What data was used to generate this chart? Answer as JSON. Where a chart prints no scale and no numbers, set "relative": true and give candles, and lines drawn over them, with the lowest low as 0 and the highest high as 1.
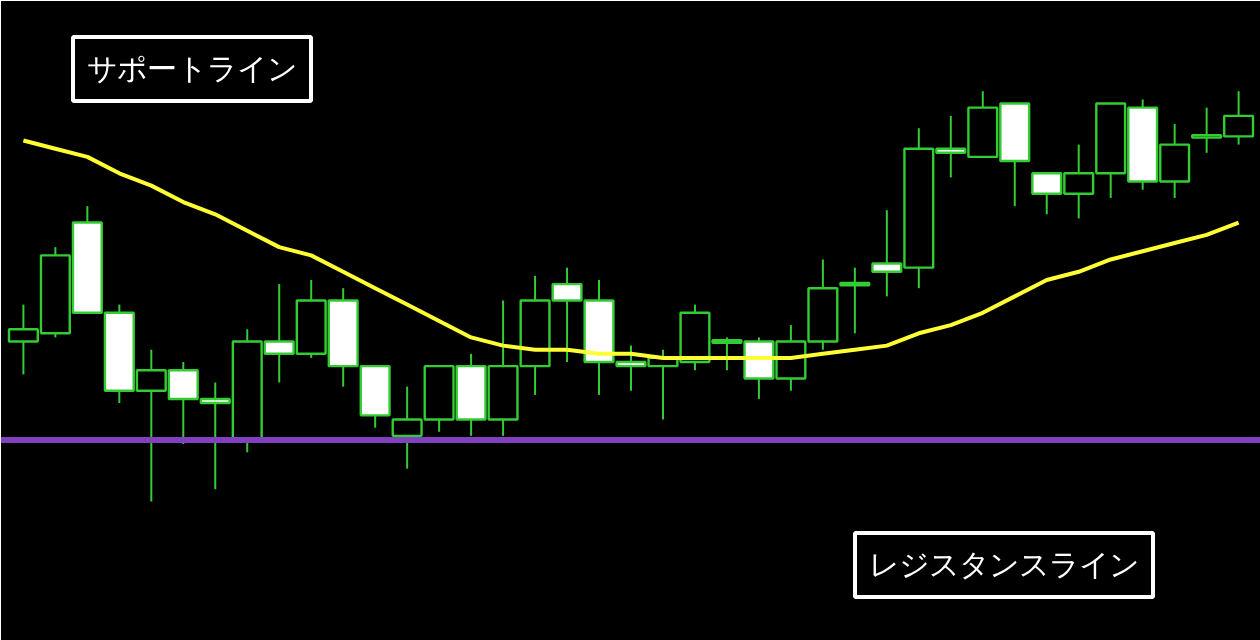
{
  "chart_data": {
    "type": "candlestick",
    "relative": true,
    "tick_labels": false,
    "grid": false,
    "color": "#33cc33",
    "categories": [
      null,
      null,
      null,
      null,
      null,
      null,
      null,
      null,
      null,
      null,
      null,
      null,
      null,
      null,
      null,
      null,
      null,
      null,
      null,
      null,
      null,
      null,
      null,
      null,
      null,
      null,
      null,
      null,
      null,
      null,
      null,
      null,
      null,
      null,
      null,
      null,
      null,
      null,
      null
    ],
    "ohlc": [
      [
        0.39,
        0.48,
        0.31,
        0.42
      ],
      [
        0.41,
        0.62,
        0.4,
        0.6
      ],
      [
        0.68,
        0.72,
        0.46,
        0.46
      ],
      [
        0.46,
        0.48,
        0.24,
        0.27
      ],
      [
        0.27,
        0.37,
        0,
        0.32
      ],
      [
        0.32,
        0.34,
        0.14,
        0.25
      ],
      [
        0.25,
        0.29,
        0.03,
        0.24
      ],
      [
        0.15,
        0.42,
        0.12,
        0.39
      ],
      [
        0.39,
        0.53,
        0.29,
        0.36
      ],
      [
        0.36,
        0.54,
        0.35,
        0.49
      ],
      [
        0.49,
        0.52,
        0.28,
        0.33
      ],
      [
        0.33,
        0.33,
        0.18,
        0.21
      ],
      [
        0.16,
        0.28,
        0.08,
        0.2
      ],
      [
        0.2,
        0.33,
        0.17,
        0.33
      ],
      [
        0.33,
        0.36,
        0.16,
        0.2
      ],
      [
        0.2,
        0.49,
        0.16,
        0.33
      ],
      [
        0.33,
        0.55,
        0.26,
        0.49
      ],
      [
        0.53,
        0.57,
        0.34,
        0.49
      ],
      [
        0.49,
        0.54,
        0.26,
        0.34
      ],
      [
        0.34,
        0.38,
        0.27,
        0.33
      ],
      [
        0.33,
        0.37,
        0.2,
        0.35
      ],
      [
        0.34,
        0.48,
        0.32,
        0.46
      ],
      [
        0.39,
        0.4,
        0.32,
        0.39
      ],
      [
        0.39,
        0.4,
        0.25,
        0.3
      ],
      [
        0.3,
        0.43,
        0.27,
        0.39
      ],
      [
        0.39,
        0.59,
        0.37,
        0.52
      ],
      [
        0.53,
        0.57,
        0.41,
        0.53
      ],
      [
        0.58,
        0.71,
        0.5,
        0.56
      ],
      [
        0.57,
        0.91,
        0.52,
        0.86
      ],
      [
        0.86,
        0.94,
        0.79,
        0.85
      ],
      [
        0.84,
        1,
        0.84,
        0.96
      ],
      [
        0.97,
        0.97,
        0.72,
        0.83
      ],
      [
        0.8,
        0.8,
        0.7,
        0.75
      ],
      [
        0.75,
        0.87,
        0.69,
        0.8
      ],
      [
        0.8,
        0.97,
        0.74,
        0.97
      ],
      [
        0.96,
        0.98,
        0.76,
        0.78
      ],
      [
        0.78,
        0.92,
        0.74,
        0.87
      ],
      [
        0.89,
        0.96,
        0.85,
        0.89
      ],
      [
        0.89,
        1,
        0.87,
        0.94
      ]
    ],
    "series": [
      {
        "type": "line",
        "color": "#ffff33",
        "line_style": "solid",
        "values": [
          0.88,
          0.86,
          0.84,
          0.8,
          0.77,
          0.73,
          0.7,
          0.66,
          0.62,
          0.6,
          0.56,
          0.52,
          0.48,
          0.44,
          0.4,
          0.38,
          0.37,
          0.37,
          0.36,
          0.36,
          0.35,
          0.35,
          0.35,
          0.35,
          0.35,
          0.36,
          0.37,
          0.38,
          0.41,
          0.43,
          0.46,
          0.5,
          0.54,
          0.56,
          0.59,
          0.61,
          0.63,
          0.65,
          0.68
        ]
      }
    ],
    "ref_lines": [
      {
        "axis": "y",
        "value": 0.15,
        "color": "#8040c0",
        "line_style": "solid"
      }
    ],
    "annotations": [
      "サポートライン",
      "レジスタンスライン"
    ]
  }
}
